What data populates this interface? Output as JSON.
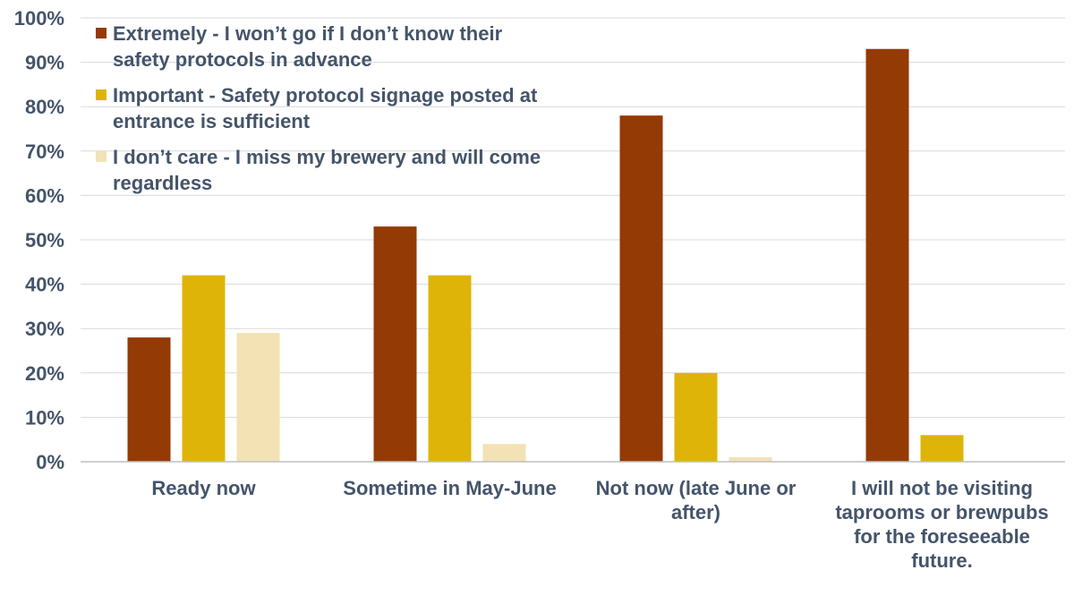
{
  "chart_data": {
    "type": "bar",
    "categories": [
      [
        "Ready now"
      ],
      [
        "Sometime in May-June"
      ],
      [
        "Not now (late June or",
        "after)"
      ],
      [
        "I will not be visiting",
        "taprooms or brewpubs",
        "for the foreseeable",
        "future."
      ]
    ],
    "series": [
      {
        "name": [
          "Extremely - I won’t go if I don’t know their",
          "safety protocols in advance"
        ],
        "color": "#943A04",
        "values": [
          0.28,
          0.53,
          0.78,
          0.93
        ]
      },
      {
        "name": [
          "Important - Safety protocol signage posted at",
          "entrance is sufficient"
        ],
        "color": "#DFB408",
        "values": [
          0.42,
          0.42,
          0.2,
          0.06
        ]
      },
      {
        "name": [
          "I don’t care - I miss my brewery and will come",
          "regardless"
        ],
        "color": "#F2E2B4",
        "values": [
          0.29,
          0.04,
          0.01,
          0.0
        ]
      }
    ],
    "ylim": [
      0,
      1
    ],
    "yticks": [
      "0%",
      "10%",
      "20%",
      "30%",
      "40%",
      "50%",
      "60%",
      "70%",
      "80%",
      "90%",
      "100%"
    ],
    "grid": true,
    "legend_position": "top-left"
  }
}
